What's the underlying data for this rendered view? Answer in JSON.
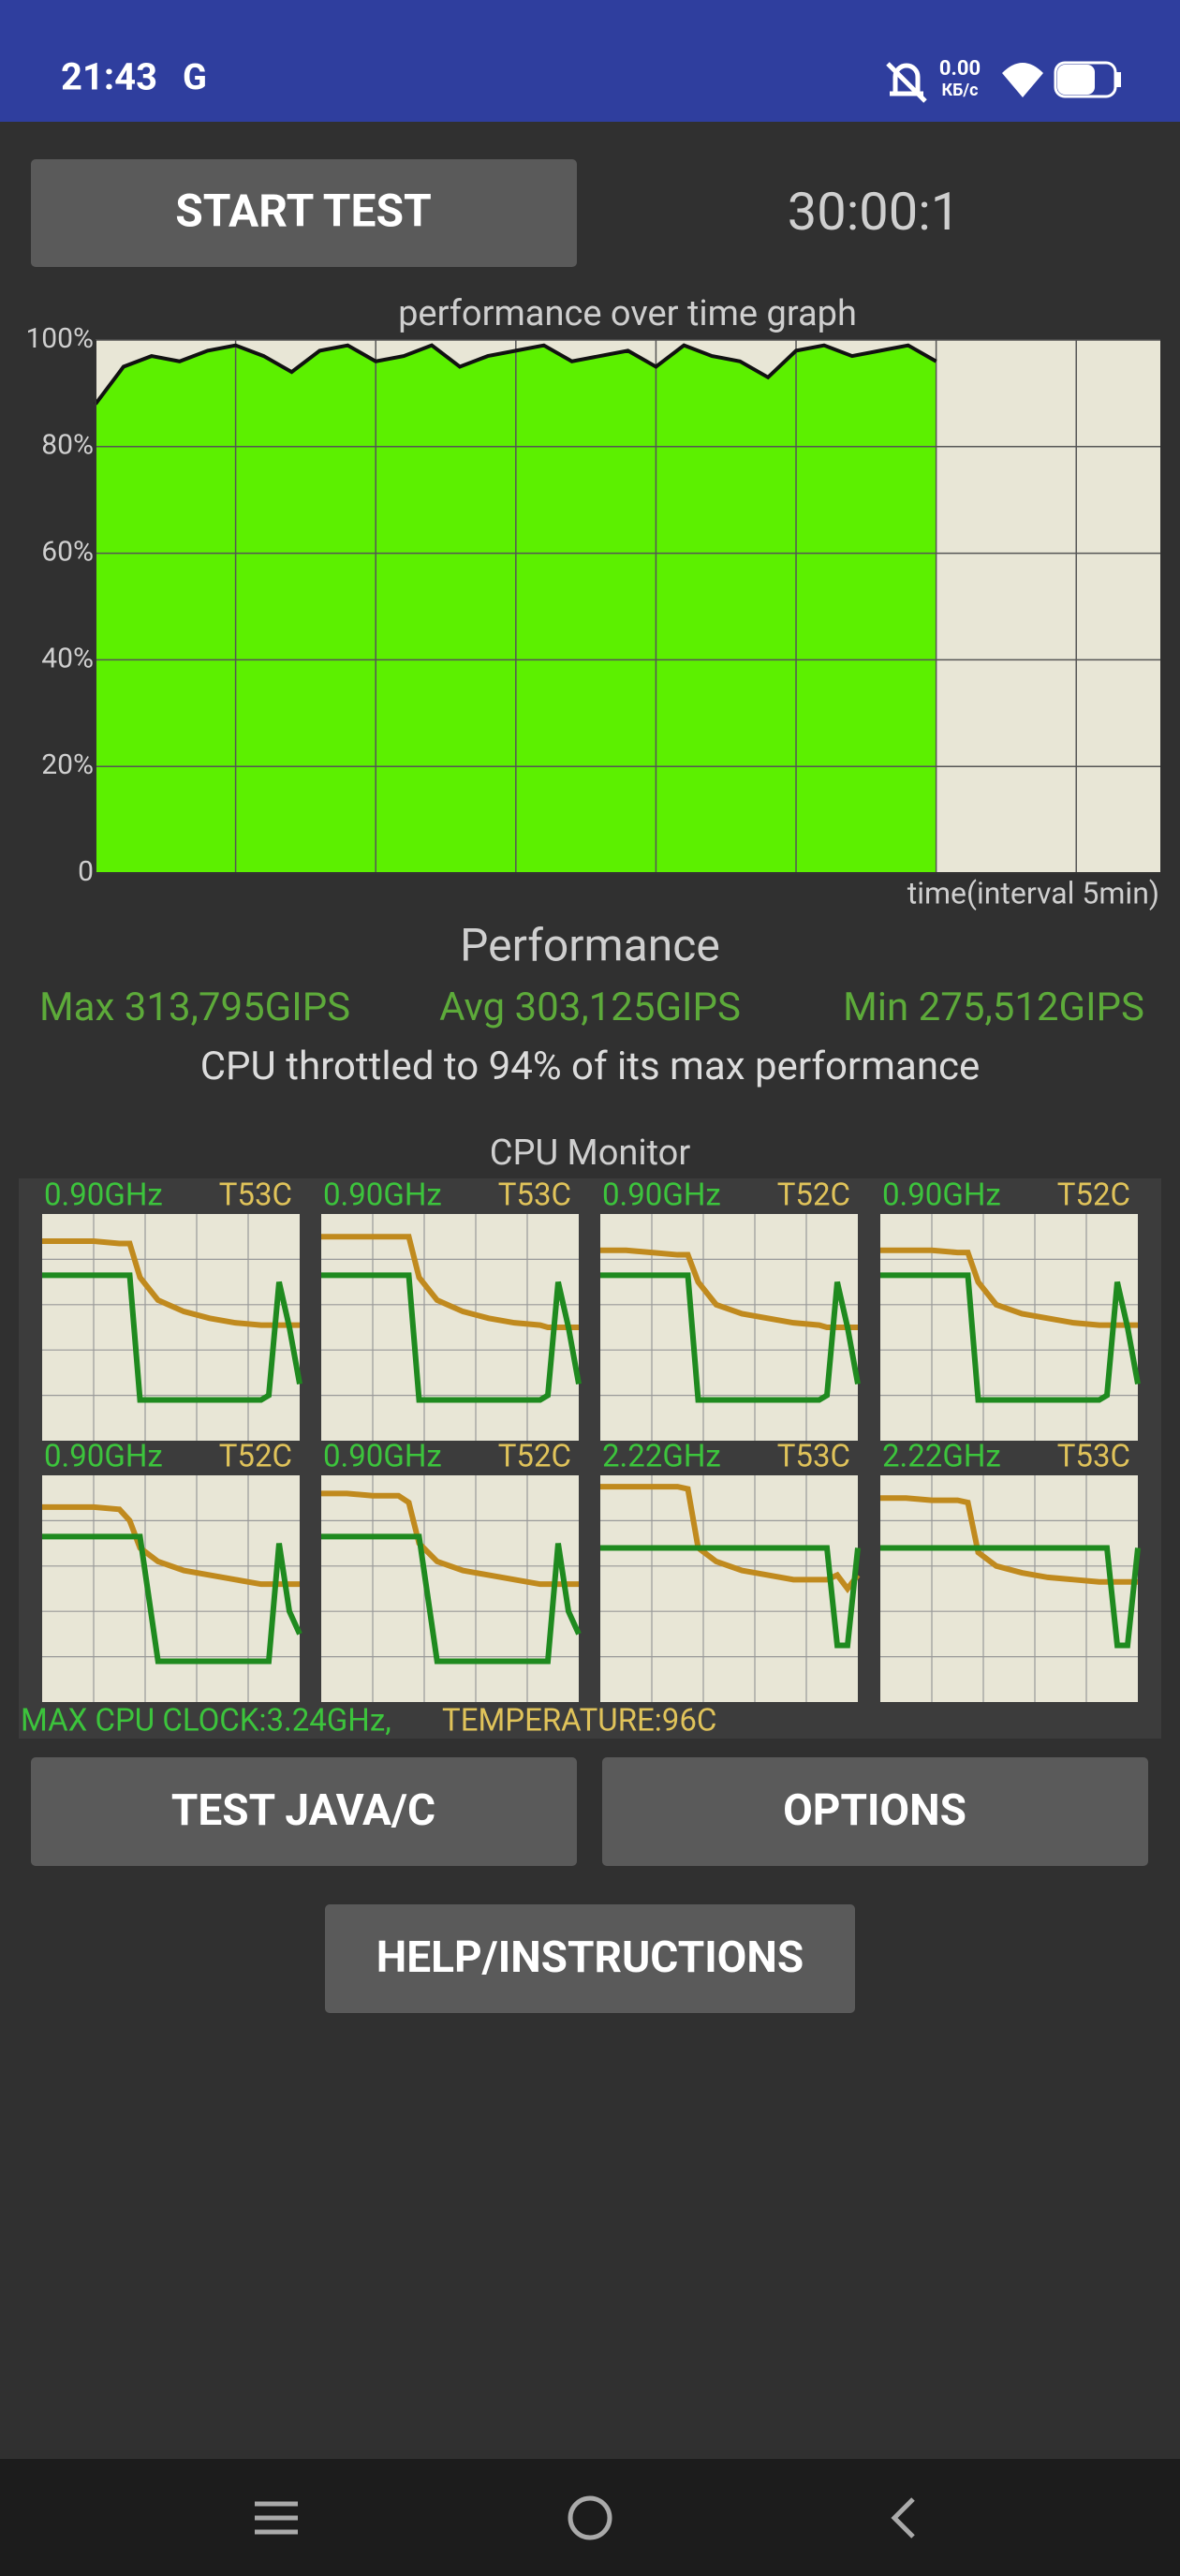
{
  "status_bar": {
    "time": "21:43",
    "carrier": "G",
    "net_speed": "0.00",
    "net_unit": "КБ/с"
  },
  "start_button": "START TEST",
  "timer": "30:00:1",
  "graph": {
    "title": "performance over time graph",
    "x_label": "time(interval 5min)",
    "ylim": [
      0,
      100
    ],
    "yticks": [
      {
        "value": 0,
        "label": "0"
      },
      {
        "value": 20,
        "label": "20%"
      },
      {
        "value": 40,
        "label": "40%"
      },
      {
        "value": 60,
        "label": "60%"
      },
      {
        "value": 80,
        "label": "80%"
      },
      {
        "value": 100,
        "label": "100%"
      }
    ],
    "xlim": [
      0,
      38
    ],
    "xticks": [
      5,
      10,
      15,
      20,
      25,
      30,
      35
    ],
    "x": [
      0,
      1,
      2,
      3,
      4,
      5,
      6,
      7,
      8,
      9,
      10,
      11,
      12,
      13,
      14,
      15,
      16,
      17,
      18,
      19,
      20,
      21,
      22,
      23,
      24,
      25,
      26,
      27,
      28,
      29,
      30
    ],
    "values": [
      88,
      95,
      97,
      96,
      98,
      99,
      97,
      94,
      98,
      99,
      96,
      97,
      99,
      95,
      97,
      98,
      99,
      96,
      97,
      98,
      95,
      99,
      97,
      96,
      93,
      98,
      99,
      97,
      98,
      99,
      96
    ]
  },
  "performance": {
    "title": "Performance",
    "max": "Max 313,795GIPS",
    "avg": "Avg 303,125GIPS",
    "min": "Min 275,512GIPS",
    "throttle": "CPU throttled to 94% of its max performance"
  },
  "cpu_monitor": {
    "title": "CPU Monitor",
    "ylim": [
      0,
      100
    ],
    "x": [
      0,
      10,
      20,
      30,
      34,
      38,
      45,
      55,
      65,
      75,
      85,
      88,
      92,
      96,
      100
    ],
    "cores": [
      {
        "freq": "0.90GHz",
        "temp": "T53C",
        "freq_values": [
          73,
          73,
          73,
          73,
          73,
          18,
          18,
          18,
          18,
          18,
          18,
          20,
          70,
          50,
          25
        ],
        "temp_values": [
          88,
          88,
          88,
          87,
          87,
          72,
          62,
          57,
          54,
          52,
          51,
          51,
          51,
          51,
          51
        ]
      },
      {
        "freq": "0.90GHz",
        "temp": "T53C",
        "freq_values": [
          73,
          73,
          73,
          73,
          73,
          18,
          18,
          18,
          18,
          18,
          18,
          20,
          70,
          50,
          25
        ],
        "temp_values": [
          90,
          90,
          90,
          90,
          90,
          72,
          62,
          57,
          54,
          52,
          51,
          50,
          50,
          50,
          50
        ]
      },
      {
        "freq": "0.90GHz",
        "temp": "T52C",
        "freq_values": [
          73,
          73,
          73,
          73,
          73,
          18,
          18,
          18,
          18,
          18,
          18,
          20,
          70,
          50,
          25
        ],
        "temp_values": [
          84,
          84,
          83,
          82,
          82,
          70,
          60,
          56,
          54,
          52,
          51,
          50,
          50,
          50,
          50
        ]
      },
      {
        "freq": "0.90GHz",
        "temp": "T52C",
        "freq_values": [
          73,
          73,
          73,
          73,
          73,
          18,
          18,
          18,
          18,
          18,
          18,
          20,
          70,
          50,
          25
        ],
        "temp_values": [
          84,
          84,
          84,
          83,
          83,
          70,
          60,
          56,
          54,
          52,
          51,
          51,
          51,
          51,
          51
        ]
      },
      {
        "freq": "0.90GHz",
        "temp": "T52C",
        "freq_values": [
          73,
          73,
          73,
          73,
          73,
          73,
          18,
          18,
          18,
          18,
          18,
          18,
          70,
          40,
          30
        ],
        "temp_values": [
          86,
          86,
          86,
          85,
          80,
          68,
          62,
          58,
          56,
          54,
          52,
          52,
          52,
          52,
          52
        ]
      },
      {
        "freq": "0.90GHz",
        "temp": "T52C",
        "freq_values": [
          73,
          73,
          73,
          73,
          73,
          73,
          18,
          18,
          18,
          18,
          18,
          18,
          70,
          40,
          30
        ],
        "temp_values": [
          92,
          92,
          91,
          91,
          88,
          70,
          62,
          58,
          56,
          54,
          52,
          52,
          52,
          52,
          52
        ]
      },
      {
        "freq": "2.22GHz",
        "temp": "T53C",
        "freq_values": [
          68,
          68,
          68,
          68,
          68,
          68,
          68,
          68,
          68,
          68,
          68,
          68,
          25,
          25,
          68
        ],
        "temp_values": [
          95,
          95,
          95,
          95,
          94,
          68,
          62,
          58,
          56,
          54,
          54,
          54,
          56,
          50,
          56
        ]
      },
      {
        "freq": "2.22GHz",
        "temp": "T53C",
        "freq_values": [
          68,
          68,
          68,
          68,
          68,
          68,
          68,
          68,
          68,
          68,
          68,
          68,
          25,
          25,
          68
        ],
        "temp_values": [
          90,
          90,
          89,
          89,
          88,
          66,
          60,
          57,
          55,
          54,
          53,
          53,
          53,
          53,
          53
        ]
      }
    ]
  },
  "footer": {
    "clock": "MAX CPU CLOCK:3.24GHz,",
    "temperature": "TEMPERATURE:96C"
  },
  "buttons": {
    "test": "TEST JAVA/C",
    "options": "OPTIONS",
    "help": "HELP/INSTRUCTIONS"
  }
}
